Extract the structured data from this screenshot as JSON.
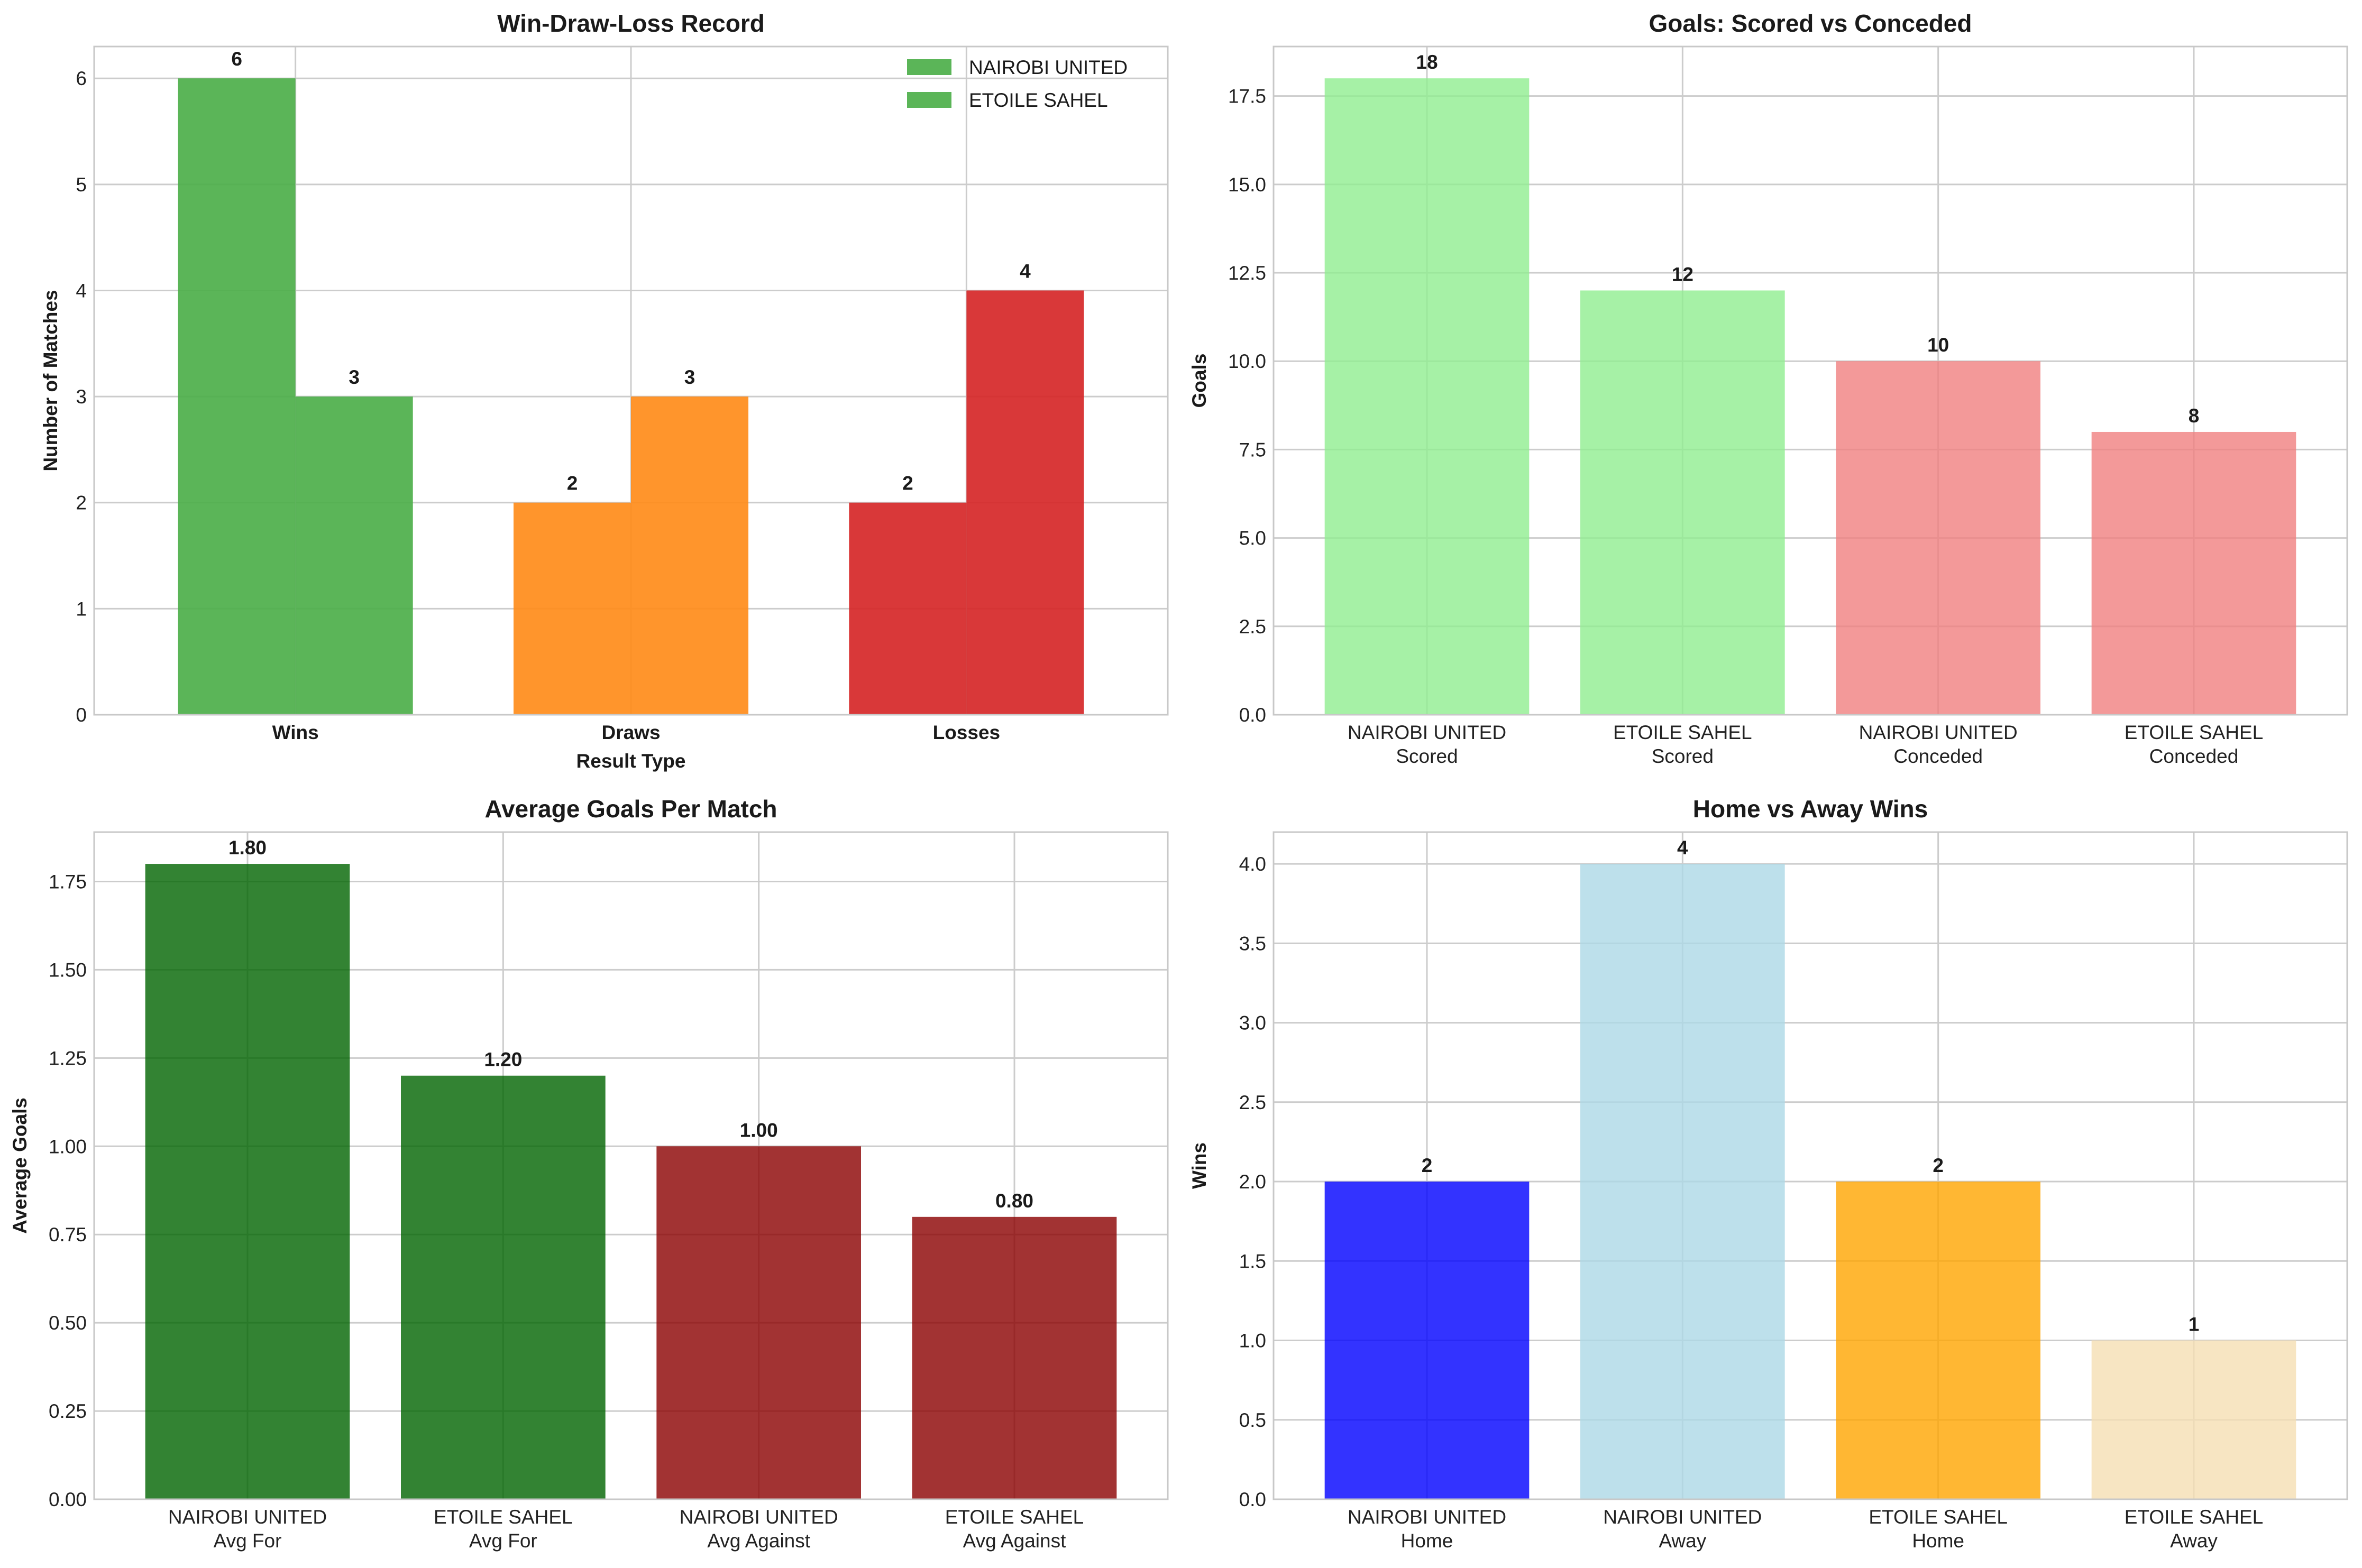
{
  "chart_data": [
    {
      "type": "bar",
      "title": "Win-Draw-Loss Record",
      "xlabel": "Result Type",
      "ylabel": "Number of Matches",
      "categories": [
        "Wins",
        "Draws",
        "Losses"
      ],
      "category_label_weight": "bold",
      "series": [
        {
          "name": "NAIROBI UNITED",
          "values": [
            6,
            2,
            2
          ]
        },
        {
          "name": "ETOILE SAHEL",
          "values": [
            3,
            3,
            4
          ]
        }
      ],
      "bar_colors": [
        "#4daf4a",
        "#ff8c1a",
        "#d62728"
      ],
      "legend_color": "#4daf4a",
      "legend": "top-right",
      "ylim": [
        0,
        6.3
      ],
      "yticks": [
        0,
        1,
        2,
        3,
        4,
        5,
        6
      ],
      "ytick_labels": [
        "0",
        "1",
        "2",
        "3",
        "4",
        "5",
        "6"
      ],
      "data_labels": [
        "6",
        "2",
        "2",
        "3",
        "3",
        "4"
      ],
      "grid": true
    },
    {
      "type": "bar",
      "title": "Goals: Scored vs Conceded",
      "xlabel": "",
      "ylabel": "Goals",
      "categories": [
        [
          "NAIROBI UNITED",
          "Scored"
        ],
        [
          "ETOILE SAHEL",
          "Scored"
        ],
        [
          "NAIROBI UNITED",
          "Conceded"
        ],
        [
          "ETOILE SAHEL",
          "Conceded"
        ]
      ],
      "values": [
        18,
        12,
        10,
        8
      ],
      "bar_colors": [
        "#90ee90",
        "#90ee90",
        "#f08080",
        "#f08080"
      ],
      "ylim": [
        0,
        18.9
      ],
      "yticks": [
        0,
        2.5,
        5,
        7.5,
        10,
        12.5,
        15,
        17.5
      ],
      "ytick_labels": [
        "0.0",
        "2.5",
        "5.0",
        "7.5",
        "10.0",
        "12.5",
        "15.0",
        "17.5"
      ],
      "data_labels": [
        "18",
        "12",
        "10",
        "8"
      ],
      "grid": true
    },
    {
      "type": "bar",
      "title": "Average Goals Per Match",
      "xlabel": "",
      "ylabel": "Average Goals",
      "categories": [
        [
          "NAIROBI UNITED",
          "Avg For"
        ],
        [
          "ETOILE SAHEL",
          "Avg For"
        ],
        [
          "NAIROBI UNITED",
          "Avg Against"
        ],
        [
          "ETOILE SAHEL",
          "Avg Against"
        ]
      ],
      "values": [
        1.8,
        1.2,
        1.0,
        0.8
      ],
      "bar_colors": [
        "#006400",
        "#006400",
        "#8b0000",
        "#8b0000"
      ],
      "ylim": [
        0,
        1.89
      ],
      "yticks": [
        0,
        0.25,
        0.5,
        0.75,
        1.0,
        1.25,
        1.5,
        1.75
      ],
      "ytick_labels": [
        "0.00",
        "0.25",
        "0.50",
        "0.75",
        "1.00",
        "1.25",
        "1.50",
        "1.75"
      ],
      "data_labels": [
        "1.80",
        "1.20",
        "1.00",
        "0.80"
      ],
      "grid": true
    },
    {
      "type": "bar",
      "title": "Home vs Away Wins",
      "xlabel": "",
      "ylabel": "Wins",
      "categories": [
        [
          "NAIROBI UNITED",
          "Home"
        ],
        [
          "NAIROBI UNITED",
          "Away"
        ],
        [
          "ETOILE SAHEL",
          "Home"
        ],
        [
          "ETOILE SAHEL",
          "Away"
        ]
      ],
      "values": [
        2,
        4,
        2,
        1
      ],
      "bar_colors": [
        "#0000ff",
        "#add8e6",
        "#ffa500",
        "#f5deb3"
      ],
      "ylim": [
        0,
        4.2
      ],
      "yticks": [
        0,
        0.5,
        1.0,
        1.5,
        2.0,
        2.5,
        3.0,
        3.5,
        4.0
      ],
      "ytick_labels": [
        "0.0",
        "0.5",
        "1.0",
        "1.5",
        "2.0",
        "2.5",
        "3.0",
        "3.5",
        "4.0"
      ],
      "data_labels": [
        "2",
        "4",
        "2",
        "1"
      ],
      "grid": true
    }
  ]
}
